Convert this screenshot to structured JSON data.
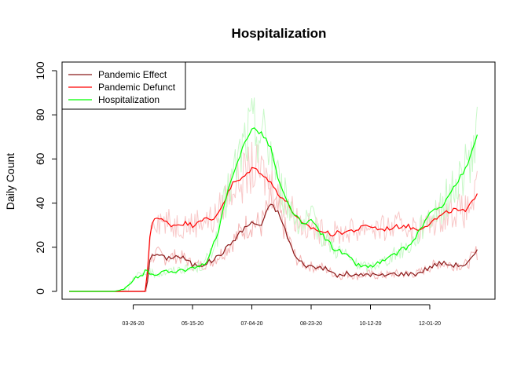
{
  "chart_data": {
    "type": "line",
    "title": "Hospitalization",
    "xlabel": "",
    "ylabel": "Daily Count",
    "ylim": [
      0,
      100
    ],
    "yticks": [
      0,
      20,
      40,
      60,
      80,
      100
    ],
    "xlim": [
      "2020-01-26",
      "2021-01-25"
    ],
    "xticks": [
      "03-26-20",
      "05-15-20",
      "07-04-20",
      "08-23-20",
      "10-12-20",
      "12-01-20"
    ],
    "xtick_dates": [
      "2020-03-26",
      "2020-05-15",
      "2020-07-04",
      "2020-08-23",
      "2020-10-12",
      "2020-12-01"
    ],
    "grid": false,
    "legend_position": "top-left",
    "series": [
      {
        "name": "Pandemic Effect",
        "color": "#8B1A1A",
        "raw_color": "#F4B6B6",
        "x": [
          "2020-02-01",
          "2020-03-01",
          "2020-03-10",
          "2020-03-20",
          "2020-03-28",
          "2020-04-06",
          "2020-04-09",
          "2020-04-15",
          "2020-04-22",
          "2020-05-01",
          "2020-05-08",
          "2020-05-15",
          "2020-05-22",
          "2020-06-01",
          "2020-06-10",
          "2020-06-20",
          "2020-06-28",
          "2020-07-04",
          "2020-07-12",
          "2020-07-20",
          "2020-07-27",
          "2020-08-03",
          "2020-08-10",
          "2020-08-18",
          "2020-08-25",
          "2020-09-01",
          "2020-09-08",
          "2020-09-15",
          "2020-09-22",
          "2020-10-01",
          "2020-10-10",
          "2020-10-20",
          "2020-11-01",
          "2020-11-10",
          "2020-11-20",
          "2020-12-01",
          "2020-12-10",
          "2020-12-20",
          "2021-01-01",
          "2021-01-10"
        ],
        "values": [
          0,
          0,
          0,
          0,
          0,
          0,
          15,
          17,
          15,
          16,
          15,
          12,
          12,
          14,
          18,
          24,
          29,
          31,
          30,
          40,
          35,
          25,
          15,
          12,
          11,
          11,
          9,
          7,
          8,
          7,
          8,
          7,
          8,
          8,
          8,
          11,
          13,
          12,
          12,
          18
        ]
      },
      {
        "name": "Pandemic Defunct",
        "color": "#FF0000",
        "raw_color": "#F8C8C8",
        "x": [
          "2020-02-01",
          "2020-03-01",
          "2020-03-10",
          "2020-03-20",
          "2020-03-28",
          "2020-04-06",
          "2020-04-09",
          "2020-04-12",
          "2020-04-20",
          "2020-04-28",
          "2020-05-08",
          "2020-05-15",
          "2020-05-22",
          "2020-06-01",
          "2020-06-10",
          "2020-06-18",
          "2020-06-26",
          "2020-07-04",
          "2020-07-12",
          "2020-07-20",
          "2020-07-27",
          "2020-08-03",
          "2020-08-10",
          "2020-08-16",
          "2020-08-23",
          "2020-09-01",
          "2020-09-10",
          "2020-09-20",
          "2020-10-01",
          "2020-10-10",
          "2020-10-20",
          "2020-11-01",
          "2020-11-10",
          "2020-11-20",
          "2020-12-01",
          "2020-12-10",
          "2020-12-20",
          "2021-01-01",
          "2021-01-10"
        ],
        "values": [
          0,
          0,
          0,
          0,
          0,
          0,
          25,
          34,
          32,
          30,
          31,
          30,
          33,
          32,
          40,
          49,
          51,
          56,
          54,
          49,
          44,
          40,
          34,
          30,
          29,
          27,
          26,
          27,
          28,
          30,
          28,
          29,
          30,
          28,
          31,
          34,
          37,
          36,
          45
        ]
      },
      {
        "name": "Hospitalization",
        "color": "#00FF00",
        "raw_color": "#C8F8C8",
        "x": [
          "2020-02-01",
          "2020-03-01",
          "2020-03-10",
          "2020-03-20",
          "2020-03-28",
          "2020-04-06",
          "2020-04-15",
          "2020-04-25",
          "2020-05-05",
          "2020-05-15",
          "2020-05-25",
          "2020-06-05",
          "2020-06-12",
          "2020-06-20",
          "2020-06-28",
          "2020-07-04",
          "2020-07-12",
          "2020-07-20",
          "2020-07-27",
          "2020-08-03",
          "2020-08-10",
          "2020-08-17",
          "2020-08-24",
          "2020-09-01",
          "2020-09-10",
          "2020-09-20",
          "2020-10-01",
          "2020-10-10",
          "2020-10-20",
          "2020-10-28",
          "2020-11-05",
          "2020-11-15",
          "2020-11-25",
          "2020-12-01",
          "2020-12-10",
          "2020-12-20",
          "2021-01-01",
          "2021-01-10"
        ],
        "values": [
          0,
          0,
          0,
          1,
          6,
          9,
          8,
          9,
          10,
          10,
          12,
          25,
          42,
          55,
          68,
          74,
          72,
          65,
          49,
          40,
          34,
          30,
          32,
          26,
          20,
          17,
          12,
          11,
          13,
          15,
          18,
          21,
          30,
          35,
          38,
          46,
          56,
          70
        ]
      }
    ]
  }
}
